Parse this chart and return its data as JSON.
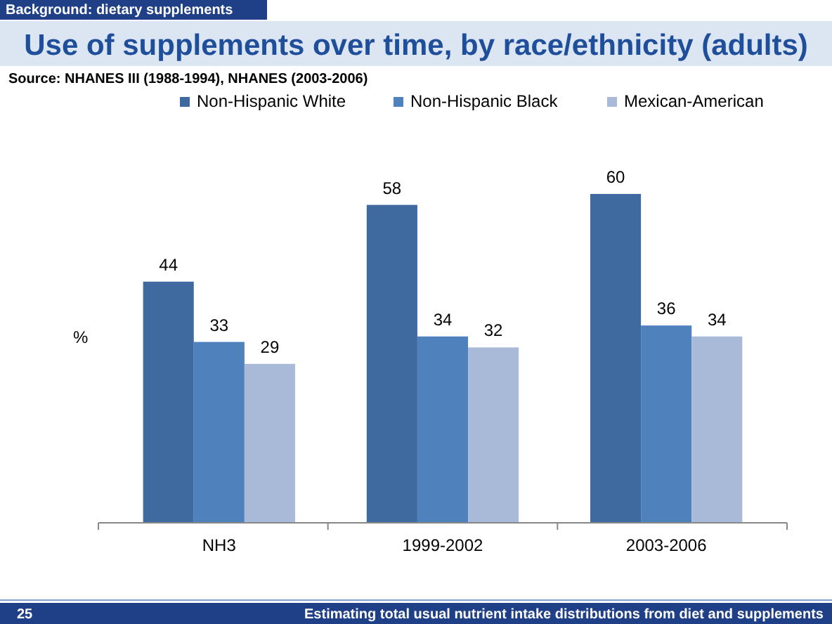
{
  "chart_data": {
    "type": "bar",
    "title": "Use of supplements over time, by race/ethnicity (adults)",
    "subtitle": "Background: dietary supplements",
    "ylabel": "%",
    "categories": [
      "NH3",
      "1999-2002",
      "2003-2006"
    ],
    "series": [
      {
        "name": "Non-Hispanic White",
        "color": "#3f6aa0",
        "values": [
          44,
          58,
          60
        ]
      },
      {
        "name": "Non-Hispanic Black",
        "color": "#4f81bd",
        "values": [
          33,
          34,
          36
        ]
      },
      {
        "name": "Mexican-American",
        "color": "#a9bad8",
        "values": [
          29,
          32,
          34
        ]
      }
    ],
    "data_labels": true,
    "legend": "top",
    "annotations": [
      "Source: NHANES III (1988-1994), NHANES (2003-2006)",
      "25",
      "Estimating total usual nutrient intake distributions from diet and supplements"
    ]
  }
}
